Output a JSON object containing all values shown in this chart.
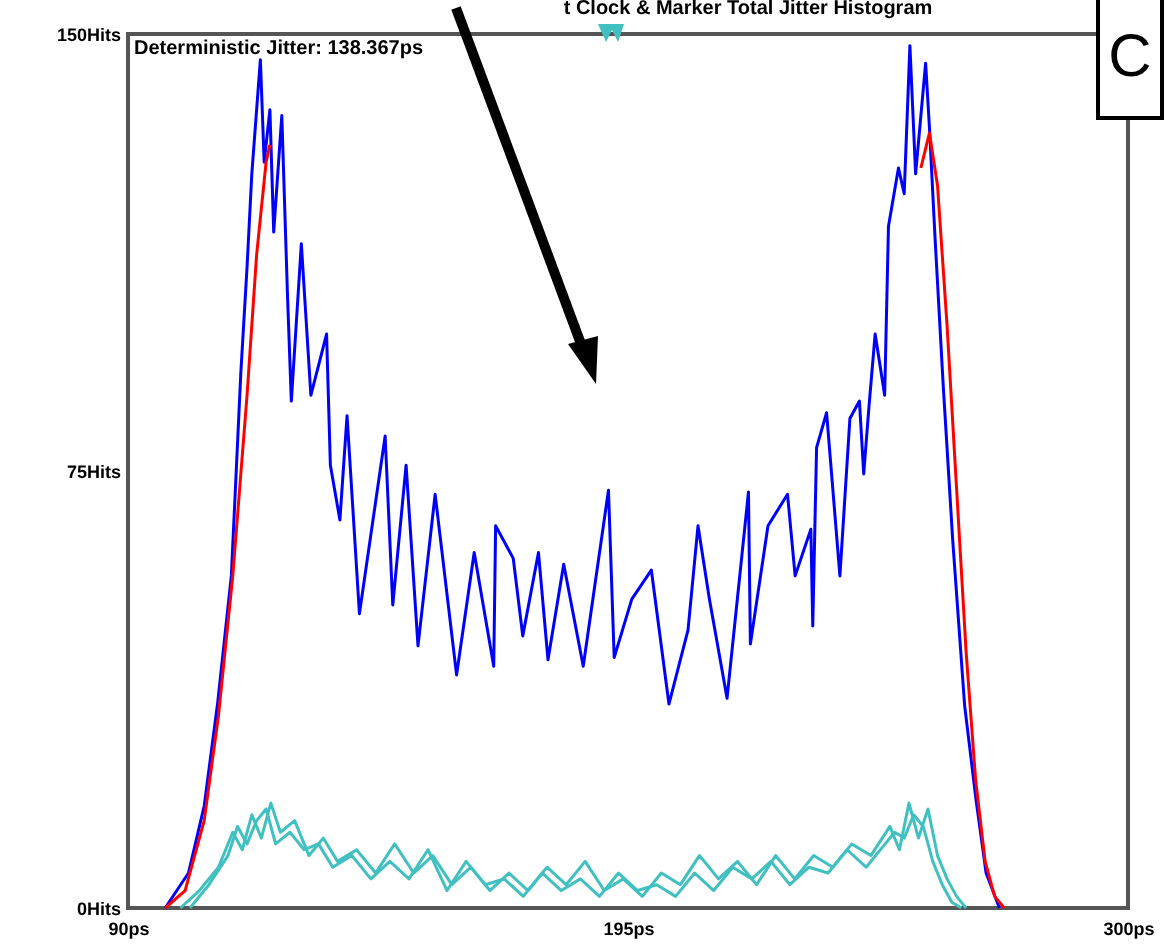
{
  "chart_data": {
    "type": "line",
    "title": "t Clock & Marker Total Jitter Histogram",
    "annotations": [
      "Deterministic Jitter: 138.367ps",
      "C"
    ],
    "xlim": [
      90,
      300
    ],
    "ylim": [
      0,
      150
    ],
    "xticks": [
      {
        "value": 90,
        "label": "90ps"
      },
      {
        "value": 195,
        "label": "195ps"
      },
      {
        "value": 300,
        "label": "300ps"
      }
    ],
    "yticks": [
      {
        "value": 0,
        "label": "0Hits"
      },
      {
        "value": 75,
        "label": "75Hits"
      },
      {
        "value": 150,
        "label": "150Hits"
      }
    ],
    "grid": false,
    "legend": false,
    "marker": "none",
    "line_style": "solid",
    "series": [
      {
        "color": "#40c0c0",
        "x": [
          101,
          105,
          109,
          112,
          114,
          116,
          118,
          120,
          122,
          125,
          128,
          131,
          134,
          138,
          142,
          146,
          150,
          154,
          158,
          162,
          166,
          170,
          174,
          178,
          182,
          186,
          190,
          194,
          198,
          202,
          206,
          210,
          214,
          218,
          222,
          226,
          230,
          234,
          238,
          242,
          246,
          250,
          252,
          254,
          256,
          258,
          260,
          262,
          264,
          266
        ],
        "values": [
          0,
          3,
          7,
          13,
          10,
          16,
          12,
          18,
          13,
          15,
          9,
          12,
          8,
          10,
          6,
          11,
          6,
          9,
          4,
          7,
          3,
          6,
          3,
          7,
          4,
          8,
          3,
          5,
          2,
          6,
          4,
          9,
          5,
          8,
          4,
          9,
          5,
          9,
          7,
          11,
          9,
          14,
          10,
          18,
          12,
          17,
          9,
          5,
          2,
          0
        ]
      },
      {
        "color": "#40c0c0",
        "x": [
          103,
          107,
          111,
          113,
          115,
          117,
          119,
          121,
          124,
          127,
          130,
          133,
          137,
          141,
          145,
          149,
          153,
          157,
          161,
          165,
          169,
          173,
          177,
          181,
          185,
          189,
          193,
          197,
          201,
          205,
          209,
          213,
          217,
          221,
          225,
          229,
          233,
          237,
          241,
          245,
          249,
          251,
          253,
          255,
          257,
          259,
          261,
          263,
          265
        ],
        "values": [
          0,
          4,
          9,
          14,
          11,
          15,
          17,
          11,
          13,
          10,
          11,
          7,
          9,
          5,
          8,
          5,
          10,
          3,
          8,
          4,
          5,
          2,
          6,
          3,
          5,
          2,
          6,
          3,
          4,
          2,
          6,
          3,
          7,
          5,
          8,
          4,
          7,
          6,
          10,
          7,
          11,
          13,
          12,
          16,
          14,
          8,
          4,
          1,
          0
        ]
      },
      {
        "color": "#0000ff",
        "x": [
          97.8,
          102.7,
          106,
          108.8,
          111.7,
          113.7,
          115,
          116,
          117.8,
          118.6,
          119.8,
          120.6,
          122.3,
          123.5,
          124.3,
          126.4,
          128.4,
          131.7,
          132.5,
          134.5,
          136,
          138.6,
          144,
          145.6,
          148.4,
          150.9,
          154.5,
          159,
          162.7,
          166.8,
          167.2,
          170.9,
          172.9,
          176.2,
          178.2,
          181.5,
          185.6,
          190.9,
          192.1,
          195.8,
          199.9,
          203.6,
          207.6,
          209.7,
          212.1,
          215.8,
          220.3,
          220.7,
          224.4,
          228.5,
          230.1,
          233.4,
          233.8,
          234.6,
          236.7,
          239.5,
          241.6,
          243.6,
          244.5,
          245.6,
          246.9,
          248.9,
          249.7,
          251.8,
          253,
          254.2,
          255.4,
          257.5,
          258.3,
          259.5,
          261.2,
          263.2,
          265.7,
          268.1,
          270.2,
          273
        ],
        "values": [
          0,
          6,
          17.5,
          35,
          57,
          92,
          110,
          126,
          145.6,
          128,
          137,
          116,
          136,
          105,
          87,
          114,
          88,
          98.5,
          76,
          66.6,
          84.5,
          50.5,
          81,
          52,
          76,
          45,
          71,
          40,
          61,
          41.5,
          65.6,
          60,
          46.7,
          61,
          42.6,
          59,
          41.5,
          71.7,
          43,
          53,
          58,
          35,
          47.7,
          65.6,
          53,
          36,
          71.4,
          45.3,
          65.6,
          71,
          57,
          65,
          48.4,
          79,
          85,
          57,
          84,
          87,
          74.5,
          86,
          98.5,
          88,
          117,
          127,
          122.6,
          148,
          126,
          145,
          134,
          114.7,
          89.6,
          63,
          34.7,
          18.5,
          6,
          0
        ]
      },
      {
        "color": "#ff0000",
        "x": [
          97.8,
          102,
          106,
          109,
          112,
          115,
          117,
          119,
          119.8
        ],
        "values": [
          0,
          3,
          15,
          33,
          57,
          88,
          112,
          128,
          131
        ]
      },
      {
        "color": "#ff0000",
        "x": [
          256.5,
          258.3,
          260,
          262,
          264,
          266,
          268,
          270,
          272,
          274
        ],
        "values": [
          127,
          133,
          124,
          100,
          72,
          44,
          22,
          8,
          2,
          0
        ]
      }
    ]
  }
}
